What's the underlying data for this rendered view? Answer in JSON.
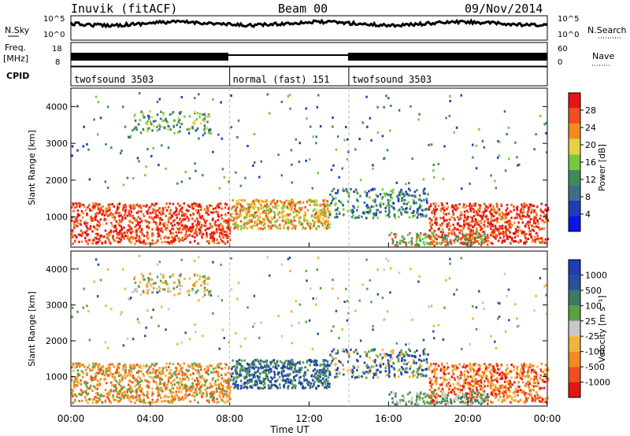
{
  "header": {
    "station": "Inuvik (fitACF)",
    "beam": "Beam 00",
    "date": "09/Nov/2014"
  },
  "strip_labels": {
    "nsky": "N.Sky",
    "nsky_ticks": [
      "10^5",
      "10^0"
    ],
    "nsearch": "N.Search",
    "nsearch_ticks": [
      "10^5",
      "10^0"
    ],
    "freq_label": "Freq.",
    "freq_unit": "[MHz]",
    "freq_ticks": [
      "18",
      "8"
    ],
    "nave": "Nave",
    "nave_ticks": [
      "60",
      "0"
    ],
    "cpid": "CPID"
  },
  "cpid_segments": [
    {
      "label": "twofsound 3503",
      "start_h": 0,
      "end_h": 8
    },
    {
      "label": "normal (fast) 151",
      "start_h": 8,
      "end_h": 14
    },
    {
      "label": "twofsound 3503",
      "start_h": 14,
      "end_h": 24
    }
  ],
  "colors": {
    "power": [
      "#0a14e6",
      "#1e3cb4",
      "#3c6e8c",
      "#3c8c5a",
      "#78c83c",
      "#e6d23c",
      "#f08c1e",
      "#f0501e",
      "#e61414"
    ],
    "velocity": [
      "#1e3cb4",
      "#2850a0",
      "#3c7864",
      "#5aa046",
      "#c8c8c8",
      "#f0b43c",
      "#f08c1e",
      "#f0501e",
      "#e61414"
    ]
  },
  "chart_data": [
    {
      "type": "heatmap",
      "panel": "power",
      "ylabel": "Slant Range [km]",
      "xlabel": "",
      "xlim": [
        "00:00",
        "00:00"
      ],
      "ylim": [
        180,
        4500
      ],
      "x_ticks": [
        "00:00",
        "04:00",
        "08:00",
        "12:00",
        "16:00",
        "20:00",
        "00:00"
      ],
      "y_ticks": [
        "1000",
        "2000",
        "3000",
        "4000"
      ],
      "colorbar": {
        "label": "Power [dB]",
        "ticks": [
          "4",
          "8",
          "12",
          "16",
          "20",
          "24",
          "28"
        ],
        "range": [
          0,
          32
        ]
      }
    },
    {
      "type": "heatmap",
      "panel": "velocity",
      "ylabel": "Slant Range [km]",
      "xlabel": "Time UT",
      "xlim": [
        "00:00",
        "00:00"
      ],
      "ylim": [
        180,
        4500
      ],
      "x_ticks": [
        "00:00",
        "04:00",
        "08:00",
        "12:00",
        "16:00",
        "20:00",
        "00:00"
      ],
      "y_ticks": [
        "1000",
        "2000",
        "3000",
        "4000"
      ],
      "colorbar": {
        "label": "Velocity [m s⁻¹]",
        "ticks": [
          "1000",
          "500",
          "100",
          "25",
          "-25",
          "-100",
          "-500",
          "-1000"
        ]
      }
    }
  ]
}
